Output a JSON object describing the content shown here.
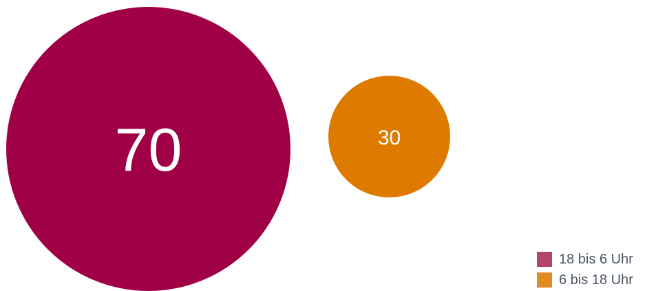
{
  "chart_data": {
    "type": "bubble",
    "series": [
      {
        "name": "18 bis 6 Uhr",
        "value": 70,
        "color": "#a00045",
        "legend_color": "#b34567"
      },
      {
        "name": "6 bis 18 Uhr",
        "value": 30,
        "color": "#de7a00",
        "legend_color": "#e28a27"
      }
    ],
    "legend_placement": "bottom-right",
    "grid": false
  }
}
